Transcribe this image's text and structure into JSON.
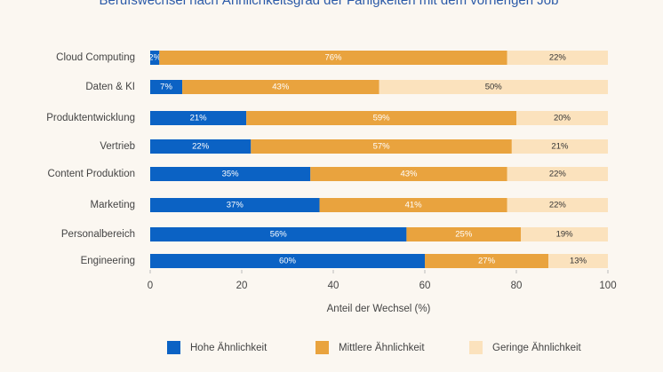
{
  "chart_data": {
    "type": "stacked_barh",
    "title": "Berufswechsel nach Ähnlichkeitsgrad der Fähigkeiten mit dem vorherigen Job",
    "categories": [
      "Cloud Computing",
      "Daten & KI",
      "Produktentwicklung",
      "Vertrieb",
      "Content Produktion",
      "Marketing",
      "Personalbereich",
      "Engineering"
    ],
    "series": [
      {
        "name": "Hohe Ähnlichkeit",
        "color": "#0b62c4",
        "values": [
          2,
          7,
          21,
          22,
          35,
          37,
          56,
          60
        ],
        "value_labels": [
          "2%",
          "7%",
          "21%",
          "22%",
          "35%",
          "37%",
          "56%",
          "60%"
        ]
      },
      {
        "name": "Mittlere Ähnlichkeit",
        "color": "#e9a33e",
        "values": [
          76,
          43,
          59,
          57,
          43,
          41,
          25,
          27
        ],
        "value_labels": [
          "76%",
          "43%",
          "59%",
          "57%",
          "43%",
          "41%",
          "25%",
          "27%"
        ]
      },
      {
        "name": "Geringe Ähnlichkeit",
        "color": "#fbe2bd",
        "values": [
          22,
          50,
          20,
          21,
          22,
          22,
          19,
          13
        ],
        "value_labels": [
          "22%",
          "50%",
          "20%",
          "21%",
          "22%",
          "22%",
          "19%",
          "13%"
        ]
      }
    ],
    "xlabel": "Anteil der Wechsel (%)",
    "xlim": [
      0,
      100
    ],
    "xticks": [
      0,
      20,
      40,
      60,
      80,
      100
    ]
  }
}
